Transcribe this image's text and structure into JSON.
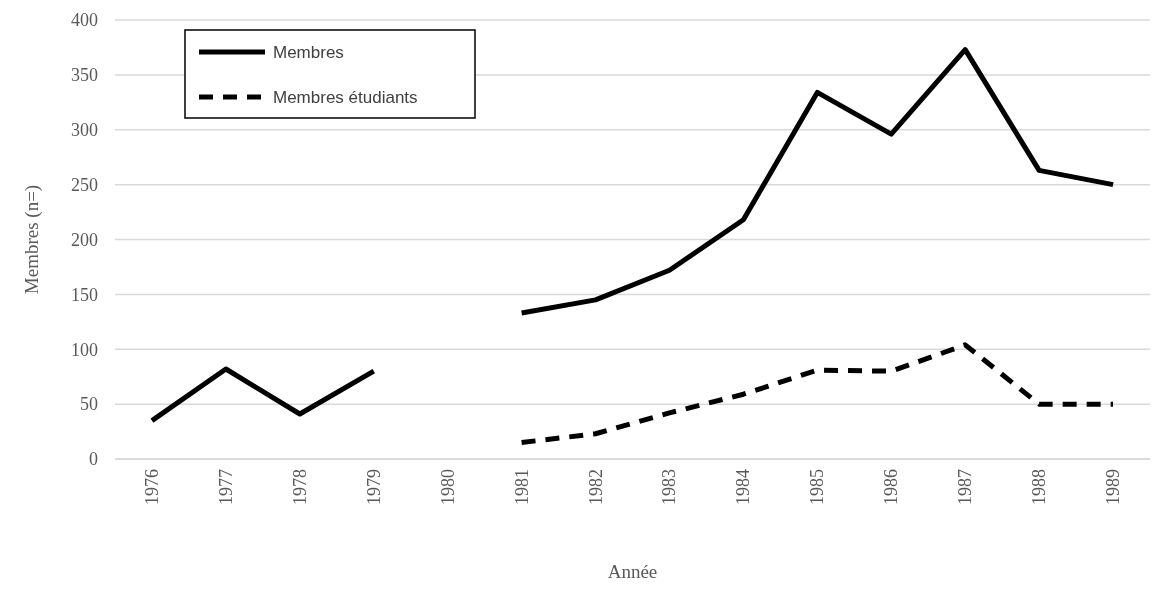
{
  "chart_data": {
    "type": "line",
    "xlabel": "Année",
    "ylabel": "Membres (n=)",
    "categories": [
      "1976",
      "1977",
      "1978",
      "1979",
      "1980",
      "1981",
      "1982",
      "1983",
      "1984",
      "1985",
      "1986",
      "1987",
      "1988",
      "1989"
    ],
    "series": [
      {
        "name": "Membres",
        "color": "#000000",
        "line_style": "solid",
        "values": [
          35,
          82,
          41,
          80,
          null,
          133,
          145,
          172,
          218,
          334,
          296,
          373,
          263,
          250
        ]
      },
      {
        "name": "Membres étudiants",
        "color": "#000000",
        "line_style": "dashed",
        "values": [
          null,
          null,
          null,
          null,
          null,
          15,
          23,
          42,
          59,
          81,
          80,
          104,
          50,
          50
        ]
      }
    ],
    "ylim": [
      0,
      400
    ],
    "yticks": [
      0,
      50,
      100,
      150,
      200,
      250,
      300,
      350,
      400
    ],
    "grid": "y",
    "legend": "top left",
    "marker": "none"
  }
}
